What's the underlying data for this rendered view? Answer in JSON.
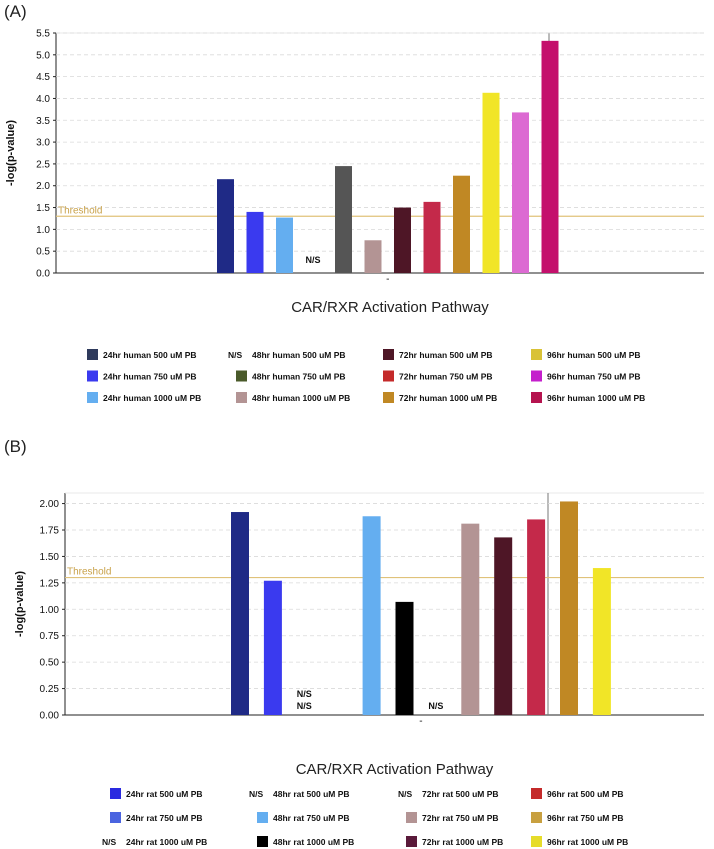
{
  "chart_data": [
    {
      "panel": "(A)",
      "type": "bar",
      "title": "",
      "xlabel": "CAR/RXR Activation Pathway",
      "ylabel": "-log(p-value)",
      "ylim": [
        0,
        5.5
      ],
      "yticks": [
        "0.0",
        "0.5",
        "1.0",
        "1.5",
        "2.0",
        "2.5",
        "3.0",
        "3.5",
        "4.0",
        "4.5",
        "5.0",
        "5.5"
      ],
      "threshold": {
        "label": "Threshold",
        "value": 1.3
      },
      "ns_label": "N/S",
      "x_tick": "-",
      "series": [
        {
          "name": "24hr human 500 uM PB",
          "value": 2.15,
          "color": "#1f2a86",
          "legend_color": "#2e3a5c"
        },
        {
          "name": "24hr human 750 uM PB",
          "value": 1.4,
          "color": "#3a3aef",
          "legend_color": "#3a3aef"
        },
        {
          "name": "24hr human 1000 uM PB",
          "value": 1.27,
          "color": "#64aef0",
          "legend_color": "#64aef0"
        },
        {
          "name": "48hr human 500 uM PB",
          "value": null,
          "ns": true,
          "color": "#333333",
          "legend_color": "#333333"
        },
        {
          "name": "48hr human 750 uM PB",
          "value": 2.45,
          "color": "#555555",
          "legend_color": "#4a5a2a"
        },
        {
          "name": "48hr human 1000 uM PB",
          "value": 0.75,
          "color": "#b39494",
          "legend_color": "#b39494"
        },
        {
          "name": "72hr human 500 uM PB",
          "value": 1.5,
          "color": "#4e1626",
          "legend_color": "#4e1626"
        },
        {
          "name": "72hr human 750 uM PB",
          "value": 1.63,
          "color": "#c4294a",
          "legend_color": "#c42a2a"
        },
        {
          "name": "72hr human 1000 uM PB",
          "value": 2.23,
          "color": "#c08824",
          "legend_color": "#c08824"
        },
        {
          "name": "96hr human 500 uM PB",
          "value": 4.13,
          "color": "#f1e527",
          "legend_color": "#d9c236"
        },
        {
          "name": "96hr human 750 uM PB",
          "value": 3.68,
          "color": "#dc6ad2",
          "legend_color": "#c41ecc"
        },
        {
          "name": "96hr human 1000 uM PB",
          "value": 5.32,
          "color": "#c4106c",
          "legend_color": "#b5134f"
        }
      ]
    },
    {
      "panel": "(B)",
      "type": "bar",
      "title": "",
      "xlabel": "CAR/RXR Activation Pathway",
      "ylabel": "-log(p-value)",
      "ylim": [
        0,
        2.1
      ],
      "yticks": [
        "0.00",
        "0.25",
        "0.50",
        "0.75",
        "1.00",
        "1.25",
        "1.50",
        "1.75",
        "2.00"
      ],
      "threshold": {
        "label": "Threshold",
        "value": 1.3
      },
      "ns_label": "N/S",
      "x_tick": "-",
      "series": [
        {
          "name": "24hr rat 500 uM PB",
          "value": 1.92,
          "color": "#1f2a86",
          "legend_color": "#2a2ae0"
        },
        {
          "name": "24hr rat 750 uM PB",
          "value": 1.27,
          "color": "#3a3aef",
          "legend_color": "#4a64e0"
        },
        {
          "name": "24hr rat 1000 uM PB",
          "value": null,
          "ns": true,
          "color": "#333333",
          "legend_color": "#333333"
        },
        {
          "name": "48hr rat 500 uM PB",
          "value": null,
          "ns": true,
          "color": "#333333",
          "legend_color": "#333333"
        },
        {
          "name": "48hr rat 750 uM PB",
          "value": 1.88,
          "color": "#64aef0",
          "legend_color": "#64aef0"
        },
        {
          "name": "48hr rat 1000 uM PB",
          "value": 1.07,
          "color": "#000000",
          "legend_color": "#000000"
        },
        {
          "name": "72hr rat 500 uM PB",
          "value": null,
          "ns": true,
          "color": "#333333",
          "legend_color": "#333333"
        },
        {
          "name": "72hr rat 750 uM PB",
          "value": 1.81,
          "color": "#b39494",
          "legend_color": "#b39494"
        },
        {
          "name": "72hr rat 1000 uM PB",
          "value": 1.68,
          "color": "#4e1626",
          "legend_color": "#5a1a3a"
        },
        {
          "name": "96hr rat 500 uM PB",
          "value": 1.85,
          "color": "#c4294a",
          "legend_color": "#c42a2a"
        },
        {
          "name": "96hr rat 750 uM PB",
          "value": 2.02,
          "color": "#c08824",
          "legend_color": "#c8a040"
        },
        {
          "name": "96hr rat 1000 uM PB",
          "value": 1.39,
          "color": "#f1e527",
          "legend_color": "#e6dc2a"
        }
      ]
    }
  ]
}
